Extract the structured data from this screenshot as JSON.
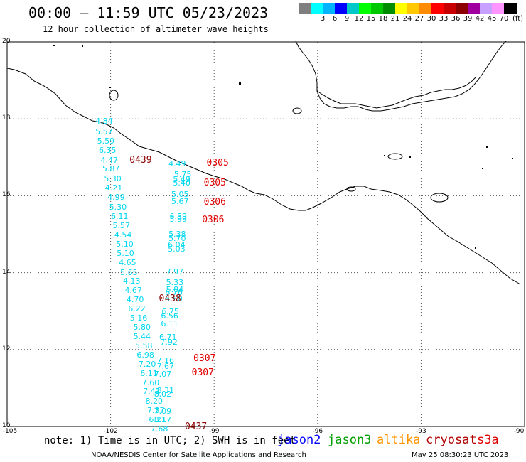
{
  "header": {
    "title": "00:00 — 11:59 UTC 05/23/2023",
    "subtitle": "12 hour collection of altimeter wave heights"
  },
  "legend": {
    "swatches": [
      {
        "color": "#7f7f7f",
        "label": ""
      },
      {
        "color": "#00ffff",
        "label": "3"
      },
      {
        "color": "#00b4ff",
        "label": "6"
      },
      {
        "color": "#0000ff",
        "label": "9"
      },
      {
        "color": "#00c8c8",
        "label": "12"
      },
      {
        "color": "#00ff00",
        "label": "15"
      },
      {
        "color": "#00c800",
        "label": "18"
      },
      {
        "color": "#008c00",
        "label": "21"
      },
      {
        "color": "#ffff00",
        "label": "24"
      },
      {
        "color": "#ffc800",
        "label": "27"
      },
      {
        "color": "#ff8c00",
        "label": "30"
      },
      {
        "color": "#ff0000",
        "label": "33"
      },
      {
        "color": "#c80000",
        "label": "36"
      },
      {
        "color": "#8c0000",
        "label": "39"
      },
      {
        "color": "#a000a0",
        "label": "42"
      },
      {
        "color": "#c8a0ff",
        "label": "45"
      },
      {
        "color": "#ff96ff",
        "label": "70"
      },
      {
        "color": "#000000",
        "label": ""
      }
    ],
    "unit": "(ft)"
  },
  "axes": {
    "lat_labels": [
      {
        "value": "20",
        "lat": 20
      },
      {
        "value": "18",
        "lat": 18
      },
      {
        "value": "16",
        "lat": 16
      },
      {
        "value": "14",
        "lat": 14
      },
      {
        "value": "12",
        "lat": 12
      },
      {
        "value": "10",
        "lat": 10
      }
    ],
    "lon_labels": [
      {
        "value": "-105",
        "lon": -105
      },
      {
        "value": "-102",
        "lon": -102
      },
      {
        "value": "-99",
        "lon": -99
      },
      {
        "value": "-96",
        "lon": -96
      },
      {
        "value": "-93",
        "lon": -93
      },
      {
        "value": "-90",
        "lon": -90
      }
    ]
  },
  "wave_heights": [
    {
      "v": "4.84",
      "lon": -102.4,
      "lat": 17.93
    },
    {
      "v": "5.57",
      "lon": -102.4,
      "lat": 17.66
    },
    {
      "v": "5.59",
      "lon": -102.35,
      "lat": 17.42
    },
    {
      "v": "6.35",
      "lon": -102.3,
      "lat": 17.18
    },
    {
      "v": "4.47",
      "lon": -102.25,
      "lat": 16.92
    },
    {
      "v": "5.87",
      "lon": -102.2,
      "lat": 16.69
    },
    {
      "v": "5.30",
      "lon": -102.15,
      "lat": 16.43
    },
    {
      "v": "4.21",
      "lon": -102.12,
      "lat": 16.2
    },
    {
      "v": "4.99",
      "lon": -102.05,
      "lat": 15.96
    },
    {
      "v": "5.30",
      "lon": -102.0,
      "lat": 15.7
    },
    {
      "v": "6.11",
      "lon": -101.95,
      "lat": 15.46
    },
    {
      "v": "5.57",
      "lon": -101.9,
      "lat": 15.22
    },
    {
      "v": "4.54",
      "lon": -101.85,
      "lat": 14.98
    },
    {
      "v": "5.10",
      "lon": -101.8,
      "lat": 14.74
    },
    {
      "v": "5.10",
      "lon": -101.78,
      "lat": 14.5
    },
    {
      "v": "4.65",
      "lon": -101.72,
      "lat": 14.25
    },
    {
      "v": "5.65",
      "lon": -101.68,
      "lat": 14.0
    },
    {
      "v": "4.13",
      "lon": -101.6,
      "lat": 13.77
    },
    {
      "v": "4.67",
      "lon": -101.55,
      "lat": 13.53
    },
    {
      "v": "4.70",
      "lon": -101.5,
      "lat": 13.29
    },
    {
      "v": "6.22",
      "lon": -101.45,
      "lat": 13.05
    },
    {
      "v": "5.16",
      "lon": -101.4,
      "lat": 12.81
    },
    {
      "v": "5.80",
      "lon": -101.3,
      "lat": 12.57
    },
    {
      "v": "5.44",
      "lon": -101.3,
      "lat": 12.33
    },
    {
      "v": "5.58",
      "lon": -101.25,
      "lat": 12.09
    },
    {
      "v": "6.98",
      "lon": -101.2,
      "lat": 11.85
    },
    {
      "v": "7.20",
      "lon": -101.15,
      "lat": 11.61
    },
    {
      "v": "6.11",
      "lon": -101.1,
      "lat": 11.37
    },
    {
      "v": "7.60",
      "lon": -101.05,
      "lat": 11.13
    },
    {
      "v": "7.42",
      "lon": -101.02,
      "lat": 10.9
    },
    {
      "v": "8.20",
      "lon": -100.95,
      "lat": 10.65
    },
    {
      "v": "7.37",
      "lon": -100.9,
      "lat": 10.41
    },
    {
      "v": "6.21",
      "lon": -100.85,
      "lat": 10.17
    },
    {
      "v": "7.68",
      "lon": -100.8,
      "lat": 9.92
    },
    {
      "v": "8.02",
      "lon": -100.7,
      "lat": 10.83
    },
    {
      "v": "8.31",
      "lon": -100.62,
      "lat": 10.92
    },
    {
      "v": "7.07",
      "lon": -100.7,
      "lat": 11.35
    },
    {
      "v": "7.67",
      "lon": -100.62,
      "lat": 11.56
    },
    {
      "v": "7.16",
      "lon": -100.62,
      "lat": 11.7
    },
    {
      "v": "7.09",
      "lon": -100.7,
      "lat": 10.38
    },
    {
      "v": "8.17",
      "lon": -100.7,
      "lat": 10.17
    },
    {
      "v": "7.92",
      "lon": -100.52,
      "lat": 12.18
    },
    {
      "v": "6.71",
      "lon": -100.55,
      "lat": 12.31
    },
    {
      "v": "6.11",
      "lon": -100.5,
      "lat": 12.66
    },
    {
      "v": "6.56",
      "lon": -100.5,
      "lat": 12.87
    },
    {
      "v": "6.75",
      "lon": -100.48,
      "lat": 12.97
    },
    {
      "v": "5.50",
      "lon": -100.38,
      "lat": 13.3
    },
    {
      "v": "6.76",
      "lon": -100.38,
      "lat": 13.48
    },
    {
      "v": "5.84",
      "lon": -100.35,
      "lat": 13.55
    },
    {
      "v": "5.33",
      "lon": -100.35,
      "lat": 13.74
    },
    {
      "v": "7.97",
      "lon": -100.35,
      "lat": 14.01
    },
    {
      "v": "5.03",
      "lon": -100.3,
      "lat": 14.6
    },
    {
      "v": "6.04",
      "lon": -100.3,
      "lat": 14.71
    },
    {
      "v": "5.70",
      "lon": -100.28,
      "lat": 14.88
    },
    {
      "v": "5.38",
      "lon": -100.28,
      "lat": 15.0
    },
    {
      "v": "5.99",
      "lon": -100.25,
      "lat": 15.38
    },
    {
      "v": "6.59",
      "lon": -100.25,
      "lat": 15.45
    },
    {
      "v": "5.67",
      "lon": -100.2,
      "lat": 15.84
    },
    {
      "v": "5.05",
      "lon": -100.2,
      "lat": 16.02
    },
    {
      "v": "5.40",
      "lon": -100.15,
      "lat": 16.33
    },
    {
      "v": "5.49",
      "lon": -100.15,
      "lat": 16.42
    },
    {
      "v": "5.75",
      "lon": -100.12,
      "lat": 16.55
    },
    {
      "v": "4.49",
      "lon": -100.28,
      "lat": 16.82
    }
  ],
  "pass_times": [
    {
      "t": "0439",
      "lon": -101.45,
      "lat": 16.92,
      "sat": "cryosat"
    },
    {
      "t": "0305",
      "lon": -99.22,
      "lat": 16.83,
      "sat": "s3a"
    },
    {
      "t": "0305",
      "lon": -99.3,
      "lat": 16.33,
      "sat": "s3a"
    },
    {
      "t": "0306",
      "lon": -99.3,
      "lat": 15.82,
      "sat": "s3a"
    },
    {
      "t": "0306",
      "lon": -99.35,
      "lat": 15.36,
      "sat": "s3a"
    },
    {
      "t": "0438",
      "lon": -100.6,
      "lat": 13.3,
      "sat": "cryosat"
    },
    {
      "t": "0307",
      "lon": -99.6,
      "lat": 11.75,
      "sat": "s3a"
    },
    {
      "t": "0307",
      "lon": -99.65,
      "lat": 11.38,
      "sat": "s3a"
    },
    {
      "t": "0437",
      "lon": -99.85,
      "lat": 9.98,
      "sat": "cryosat"
    }
  ],
  "footer": {
    "note": "note: 1) Time is in UTC; 2) SWH is in feet",
    "satellites": [
      {
        "name": "jason2",
        "color": "#0000ff"
      },
      {
        "name": "jason3",
        "color": "#00a000"
      },
      {
        "name": "altika",
        "color": "#ff9400"
      },
      {
        "name": "cryosat",
        "color": "#b00000"
      },
      {
        "name": "s3a",
        "color": "#e00000"
      }
    ],
    "credit": "NOAA/NESDIS Center for Satellite Applications and Research",
    "timestamp": "May 25 08:30:23 UTC 2023"
  },
  "colors": {
    "wave_value": "#00d8ef",
    "s3a_time": "#e00000",
    "cryosat_time": "#8b0000"
  }
}
